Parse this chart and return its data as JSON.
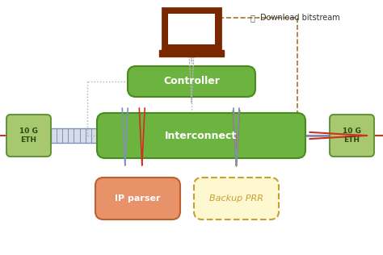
{
  "bg_color": "#ffffff",
  "green_box_color": "#6db33f",
  "green_box_edge": "#4a8a20",
  "eth_box_color": "#a8c870",
  "eth_box_edge": "#5a8a30",
  "ip_parser_color": "#e8926a",
  "ip_parser_edge": "#c06030",
  "backup_prr_color": "#fdf8d0",
  "backup_prr_edge": "#c8a030",
  "laptop_color": "#7a2800",
  "red_line_color": "#d03020",
  "blue_line_color": "#8090b8",
  "dashed_line_color": "#a07828",
  "dotted_line_color": "#b0b0c0",
  "title_text": "Download bitstream",
  "controller_text": "Controller",
  "interconnect_text": "Interconnect",
  "ip_parser_text": "IP parser",
  "backup_prr_text": "Backup PRR",
  "eth_text": "10 G\nETH"
}
